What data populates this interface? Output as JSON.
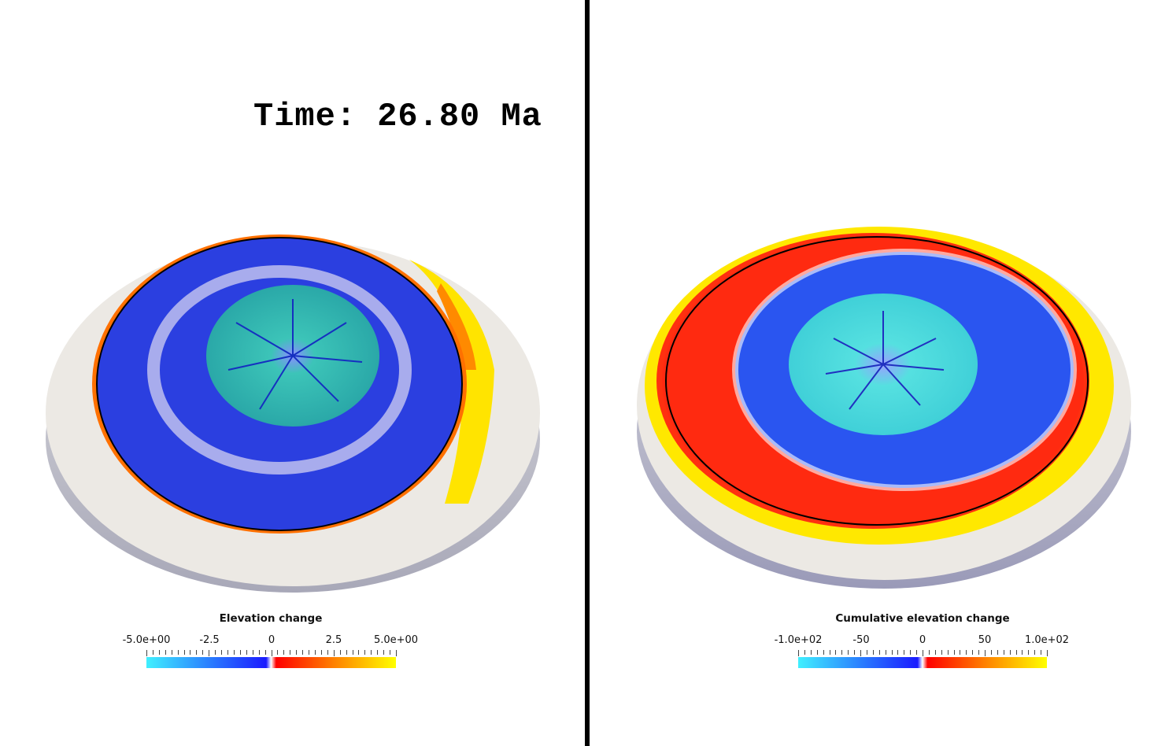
{
  "time_label": "Time: 26.80 Ma",
  "left_panel": {
    "legend_title": "Elevation change",
    "ticks": [
      "-5.0e+00",
      "-2.5",
      "0",
      "2.5",
      "5.0e+00"
    ],
    "colormap": [
      "#40f0ff",
      "#2a7fff",
      "#1a1aff",
      "#ffffff",
      "#ff0000",
      "#ff8000",
      "#ffff00"
    ]
  },
  "right_panel": {
    "legend_title": "Cumulative elevation change",
    "ticks": [
      "-1.0e+02",
      "-50",
      "0",
      "50",
      "1.0e+02"
    ],
    "colormap": [
      "#40f0ff",
      "#2a7fff",
      "#1a1aff",
      "#ffffff",
      "#ff0000",
      "#ff8000",
      "#ffff00"
    ]
  }
}
